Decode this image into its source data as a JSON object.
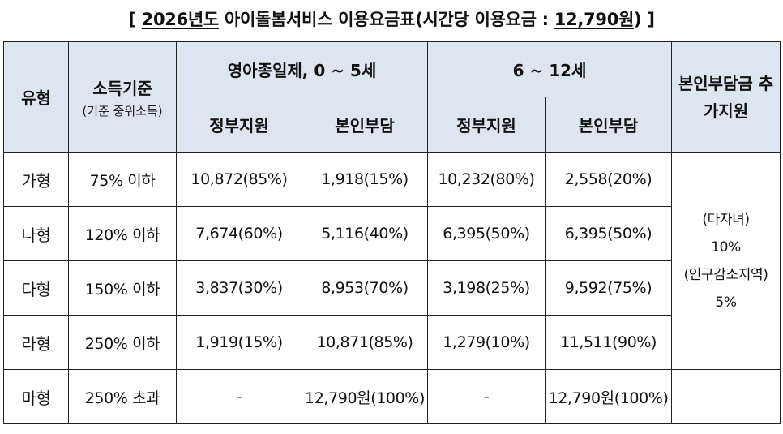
{
  "title": {
    "open": "[ ",
    "year": "2026년도",
    "middle": " 아이돌봄서비스 이용요금표(시간당 이용요금 : ",
    "rate": "12,790원",
    "close": ") ]"
  },
  "header": {
    "type": "유형",
    "income": "소득기준",
    "income_sub": "(기준 중위소득)",
    "group1": "영아종일제, 0 ~ 5세",
    "group2": "6 ~ 12세",
    "gov": "정부지원",
    "self": "본인부담",
    "extra": "본인부담금 추가지원"
  },
  "rows": [
    {
      "type": "가형",
      "income": "75% 이하",
      "g1_gov": "10,872(85%)",
      "g1_self": "1,918(15%)",
      "g2_gov": "10,232(80%)",
      "g2_self": "2,558(20%)"
    },
    {
      "type": "나형",
      "income": "120% 이하",
      "g1_gov": "7,674(60%)",
      "g1_self": "5,116(40%)",
      "g2_gov": "6,395(50%)",
      "g2_self": "6,395(50%)"
    },
    {
      "type": "다형",
      "income": "150% 이하",
      "g1_gov": "3,837(30%)",
      "g1_self": "8,953(70%)",
      "g2_gov": "3,198(25%)",
      "g2_self": "9,592(75%)"
    },
    {
      "type": "라형",
      "income": "250% 이하",
      "g1_gov": "1,919(15%)",
      "g1_self": "10,871(85%)",
      "g2_gov": "1,279(10%)",
      "g2_self": "11,511(90%)"
    },
    {
      "type": "마형",
      "income": "250% 초과",
      "g1_gov": "-",
      "g1_self": "12,790원(100%)",
      "g2_gov": "-",
      "g2_self": "12,790원(100%)"
    }
  ],
  "extra_support": {
    "line1": "(다자녀)",
    "line2": "10%",
    "line3": "(인구감소지역)",
    "line4": "5%"
  }
}
